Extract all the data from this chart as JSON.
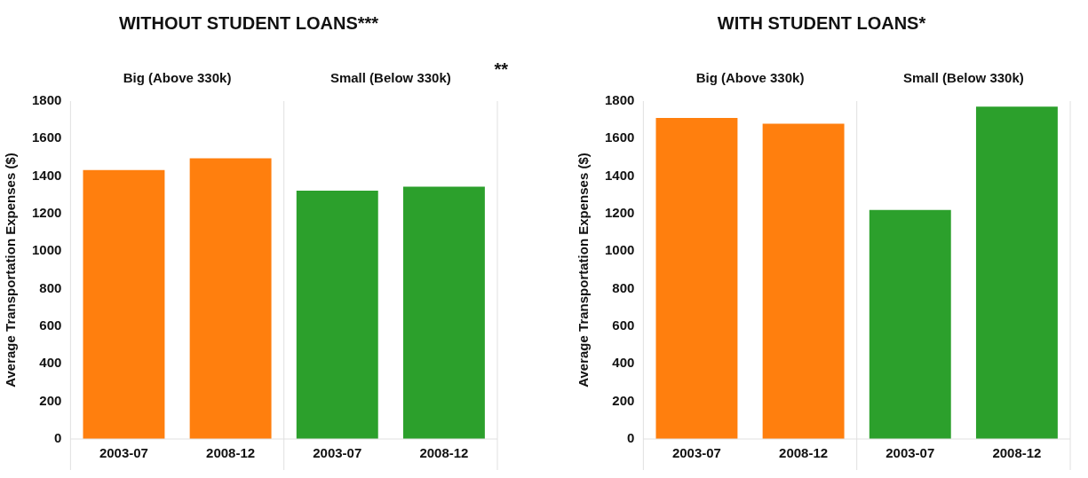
{
  "chart_data": [
    {
      "type": "bar",
      "title": "WITHOUT STUDENT LOANS***",
      "ylabel": "Average Transportation Expenses ($)",
      "categories": [
        "2003-07",
        "2008-12",
        "2003-07",
        "2008-12"
      ],
      "values": [
        1433,
        1495,
        1323,
        1344
      ],
      "colors": [
        "#ff7f0e",
        "#ff7f0e",
        "#2ca02c",
        "#2ca02c"
      ],
      "ylim": [
        0,
        1800
      ],
      "yticks": [
        0,
        200,
        400,
        600,
        800,
        1000,
        1200,
        1400,
        1600,
        1800
      ],
      "grid": false,
      "legend": false,
      "annotations": [
        "Big (Above 330k)",
        "Small (Below 330k)",
        "**"
      ]
    },
    {
      "type": "bar",
      "title": "WITH STUDENT LOANS*",
      "ylabel": "Average Transportation Expenses ($)",
      "categories": [
        "2003-07",
        "2008-12",
        "2003-07",
        "2008-12"
      ],
      "values": [
        1710,
        1680,
        1220,
        1770
      ],
      "colors": [
        "#ff7f0e",
        "#ff7f0e",
        "#2ca02c",
        "#2ca02c"
      ],
      "ylim": [
        0,
        1800
      ],
      "yticks": [
        0,
        200,
        400,
        600,
        800,
        1000,
        1200,
        1400,
        1600,
        1800
      ],
      "grid": false,
      "legend": false,
      "annotations": [
        "Big (Above 330k)",
        "Small (Below 330k)"
      ]
    }
  ]
}
